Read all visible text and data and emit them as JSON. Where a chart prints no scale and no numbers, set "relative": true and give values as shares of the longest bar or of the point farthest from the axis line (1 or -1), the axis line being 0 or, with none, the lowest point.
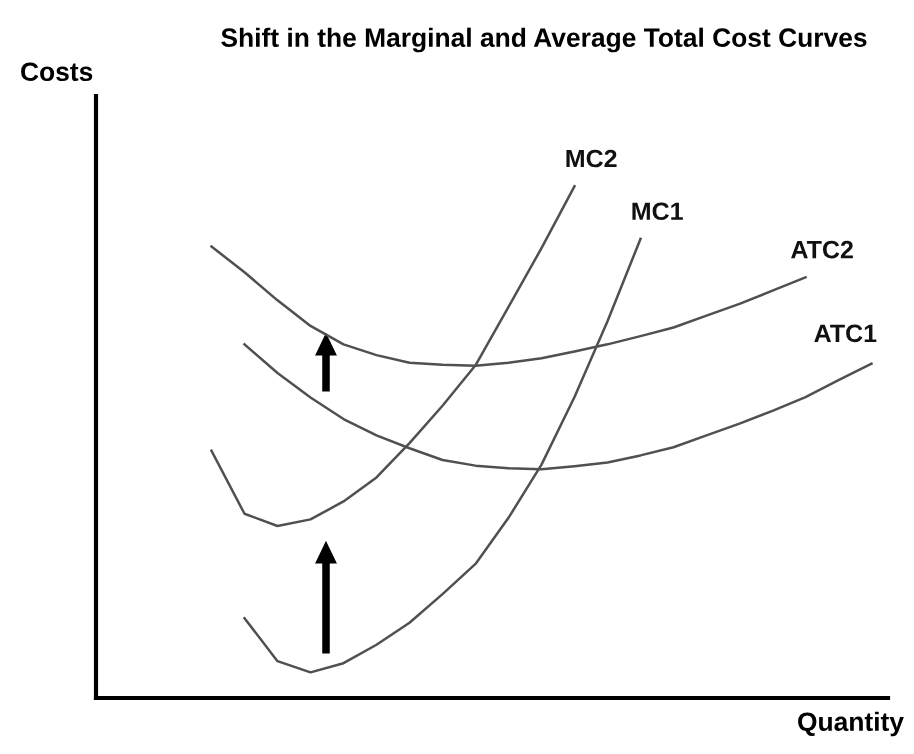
{
  "chart_data": {
    "type": "line",
    "title": "Shift in the Marginal and Average Total Cost Curves",
    "xlabel": "Quantity",
    "ylabel": "Costs",
    "relative": true,
    "legend": false,
    "marker": "none",
    "line_style": "solid",
    "categories": [
      null,
      null,
      null,
      null,
      null,
      null,
      null,
      null,
      null,
      null,
      null,
      null,
      null,
      null,
      null,
      null,
      null,
      null,
      null,
      null,
      null,
      null,
      null,
      null
    ],
    "series": [
      {
        "name": "MC2",
        "color": "#505050",
        "values": [
          null,
          null,
          null,
          0.483,
          0.36,
          0.336,
          0.349,
          0.384,
          0.431,
          0.498,
          0.571,
          0.65,
          0.764,
          0.879,
          1.0,
          null,
          null,
          null,
          null,
          null,
          null,
          null,
          null,
          null
        ]
      },
      {
        "name": "MC1",
        "color": "#505050",
        "values": [
          null,
          null,
          null,
          null,
          0.156,
          0.072,
          0.05,
          0.068,
          0.104,
          0.147,
          0.203,
          0.262,
          0.352,
          0.456,
          0.588,
          0.736,
          0.897,
          null,
          null,
          null,
          null,
          null,
          null,
          null
        ]
      },
      {
        "name": "ATC2",
        "color": "#505050",
        "values": [
          null,
          null,
          null,
          0.882,
          0.832,
          0.777,
          0.727,
          0.691,
          0.67,
          0.655,
          0.651,
          0.649,
          0.655,
          0.664,
          0.677,
          0.691,
          0.707,
          0.724,
          0.747,
          0.77,
          0.796,
          0.822,
          null,
          null
        ]
      },
      {
        "name": "ATC1",
        "color": "#505050",
        "values": [
          null,
          null,
          null,
          null,
          0.691,
          0.635,
          0.587,
          0.545,
          0.513,
          0.488,
          0.465,
          0.454,
          0.449,
          0.447,
          0.453,
          0.46,
          0.474,
          0.49,
          0.513,
          0.536,
          0.561,
          0.588,
          0.621,
          0.653
        ]
      }
    ]
  }
}
